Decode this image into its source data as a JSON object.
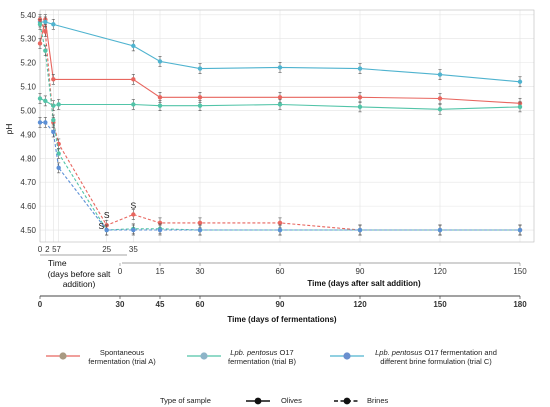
{
  "chart_data": {
    "type": "line",
    "ylabel": "pH",
    "ylim": [
      4.45,
      5.42
    ],
    "yticks": [
      "4.50",
      "4.60",
      "4.70",
      "4.80",
      "4.90",
      "5.00",
      "5.10",
      "5.20",
      "5.30",
      "5.40"
    ],
    "grid": true,
    "axis_before": {
      "label_line1": "Time",
      "label_line2": "(days before salt",
      "label_line3": "addition)",
      "ticks": [
        "0",
        "2",
        "5",
        "7",
        "25",
        "35"
      ]
    },
    "axis_after": {
      "label": "Time (days after salt addition)",
      "ticks": [
        "0",
        "15",
        "30",
        "60",
        "90",
        "120",
        "150"
      ]
    },
    "axis_total": {
      "label": "Time (days of fermentations)",
      "ticks": [
        "0",
        "30",
        "45",
        "60",
        "90",
        "120",
        "150",
        "180"
      ]
    },
    "series": [
      {
        "trial": "A",
        "sample": "Olives",
        "color": "#e8665f",
        "style": "solid",
        "x": [
          0,
          2,
          5,
          35,
          45,
          60,
          90,
          120,
          150,
          180
        ],
        "y": [
          5.28,
          5.38,
          5.13,
          5.13,
          5.055,
          5.055,
          5.055,
          5.055,
          5.05,
          5.03
        ]
      },
      {
        "trial": "B",
        "sample": "Olives",
        "color": "#52c4a8",
        "style": "solid",
        "x": [
          0,
          2,
          5,
          7,
          35,
          45,
          60,
          90,
          120,
          150,
          180
        ],
        "y": [
          5.05,
          5.04,
          5.02,
          5.025,
          5.025,
          5.02,
          5.02,
          5.025,
          5.015,
          5.005,
          5.015
        ]
      },
      {
        "trial": "C",
        "sample": "Olives",
        "color": "#4fb3cf",
        "style": "solid",
        "x": [
          0,
          2,
          5,
          35,
          45,
          60,
          90,
          120,
          150,
          180
        ],
        "y": [
          5.37,
          5.37,
          5.36,
          5.27,
          5.205,
          5.175,
          5.18,
          5.175,
          5.15,
          5.12
        ]
      },
      {
        "trial": "A",
        "sample": "Brines",
        "color": "#e8665f",
        "style": "dashed",
        "x": [
          0,
          2,
          5,
          7,
          25,
          35,
          45,
          60,
          90,
          120,
          150,
          180
        ],
        "y": [
          5.38,
          5.33,
          4.95,
          4.86,
          4.52,
          4.565,
          4.53,
          4.53,
          4.53,
          4.5,
          4.5,
          4.5
        ]
      },
      {
        "trial": "B",
        "sample": "Brines",
        "color": "#52c4a8",
        "style": "dashed",
        "x": [
          0,
          2,
          5,
          7,
          25,
          35,
          45,
          60,
          90,
          120,
          150,
          180
        ],
        "y": [
          5.36,
          5.25,
          4.96,
          4.82,
          4.5,
          4.505,
          4.505,
          4.5,
          4.5,
          4.5,
          4.5,
          4.5
        ]
      },
      {
        "trial": "C",
        "sample": "Brines",
        "color": "#5b8fd6",
        "style": "dashed",
        "x": [
          0,
          2,
          5,
          7,
          25,
          35,
          45,
          60,
          90,
          120,
          150,
          180
        ],
        "y": [
          4.95,
          4.95,
          4.91,
          4.76,
          4.5,
          4.5,
          4.5,
          4.5,
          4.5,
          4.5,
          4.5,
          4.5
        ]
      }
    ],
    "annotations": [
      {
        "text": "S",
        "x": 25,
        "y": 4.55
      },
      {
        "text": "S",
        "x": 35,
        "y": 4.59
      },
      {
        "text": "S",
        "x": 23,
        "y": 4.505
      }
    ],
    "legend": {
      "placement": "bottom",
      "items": [
        {
          "key": "A",
          "color": "#e8665f",
          "line1": "Spontaneous",
          "line2": "fermentation (trial A)",
          "italic": ""
        },
        {
          "key": "B",
          "color": "#52c4a8",
          "line1_italic": "Lpb. pentosus",
          "line1": " O17",
          "line2": "fermentation (trial B)"
        },
        {
          "key": "C",
          "color": "#5b8fd6",
          "line1_italic": "Lpb. pentosus",
          "line1": " O17 fermentation and",
          "line2": "different brine formulation (trial C)"
        }
      ],
      "sample_title": "Type of sample",
      "sample_types": [
        "Olives",
        "Brines"
      ]
    }
  }
}
